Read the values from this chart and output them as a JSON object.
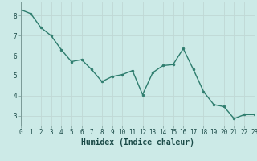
{
  "x": [
    0,
    1,
    2,
    3,
    4,
    5,
    6,
    7,
    8,
    9,
    10,
    11,
    12,
    13,
    14,
    15,
    16,
    17,
    18,
    19,
    20,
    21,
    22,
    23
  ],
  "y": [
    8.3,
    8.1,
    7.4,
    7.0,
    6.3,
    5.7,
    5.8,
    5.3,
    4.7,
    4.95,
    5.05,
    5.25,
    4.05,
    5.15,
    5.5,
    5.55,
    6.35,
    5.3,
    4.2,
    3.55,
    3.45,
    2.85,
    3.05,
    3.05
  ],
  "line_color": "#2e7d6e",
  "marker": "o",
  "marker_size": 2.0,
  "linewidth": 1.0,
  "xlabel": "Humidex (Indice chaleur)",
  "xlim": [
    0,
    23
  ],
  "ylim": [
    2.5,
    8.7
  ],
  "yticks": [
    3,
    4,
    5,
    6,
    7,
    8
  ],
  "xticks": [
    0,
    1,
    2,
    3,
    4,
    5,
    6,
    7,
    8,
    9,
    10,
    11,
    12,
    13,
    14,
    15,
    16,
    17,
    18,
    19,
    20,
    21,
    22,
    23
  ],
  "bg_color": "#cceae7",
  "grid_color": "#c0d8d5",
  "plot_bg": "#cceae7",
  "spine_color": "#7a9a97",
  "xlabel_fontsize": 7,
  "tick_fontsize": 5.5
}
